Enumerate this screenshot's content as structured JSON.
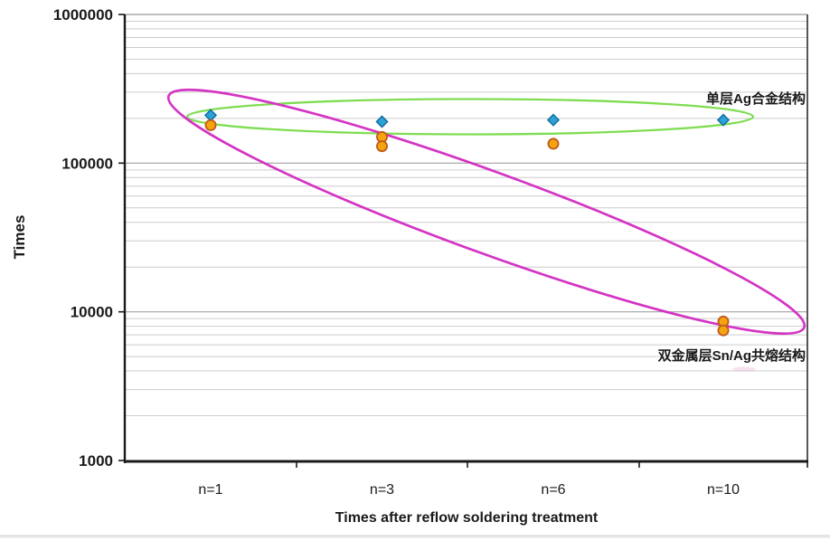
{
  "chart_data": {
    "type": "scatter",
    "title": "",
    "xlabel": "Times after reflow soldering treatment",
    "ylabel": "Times",
    "y_scale": "log",
    "ylim": [
      1000,
      1000000
    ],
    "y_tick_values": [
      1000000,
      100000,
      10000,
      1000
    ],
    "y_tick_labels": [
      "1000000",
      "100000",
      "10000",
      "1000"
    ],
    "categories": [
      "n=1",
      "n=3",
      "n=6",
      "n=10"
    ],
    "grid": "horizontal log major+minor gridlines, on",
    "legend_position": "none (annotated ellipses instead)",
    "series": [
      {
        "name": "单层Ag合金结构",
        "marker": "diamond",
        "fill_color": "#2aa4d8",
        "border_color": "#1a6fa6",
        "points": [
          {
            "category": "n=1",
            "value": 210000
          },
          {
            "category": "n=3",
            "value": 190000
          },
          {
            "category": "n=6",
            "value": 195000
          },
          {
            "category": "n=10",
            "value": 195000
          }
        ]
      },
      {
        "name": "双金属层Sn/Ag共熔结构",
        "marker": "circle",
        "fill_color": "#f4a40e",
        "border_color": "#bf5b1d",
        "points": [
          {
            "category": "n=1",
            "value": 180000
          },
          {
            "category": "n=3",
            "value": 150000
          },
          {
            "category": "n=3",
            "value": 130000
          },
          {
            "category": "n=6",
            "value": 135000
          },
          {
            "category": "n=10",
            "value": 8600
          },
          {
            "category": "n=10",
            "value": 7500
          }
        ]
      }
    ],
    "annotations": [
      {
        "text": "单层Ag合金结构",
        "ellipse_color": "#7fdd52",
        "encircles": "blue diamond series (~200000 across all n)"
      },
      {
        "text": "双金属层Sn/Ag共熔结构",
        "ellipse_color": "#d434c4",
        "encircles": "orange circle series (drops from ~180000 to ~8000)"
      }
    ],
    "colors": {
      "grid_minor": "#cccccc",
      "grid_major": "#a3a3a3",
      "axis_frame": "#1a1a1a",
      "text": "#1a1a1a"
    }
  }
}
